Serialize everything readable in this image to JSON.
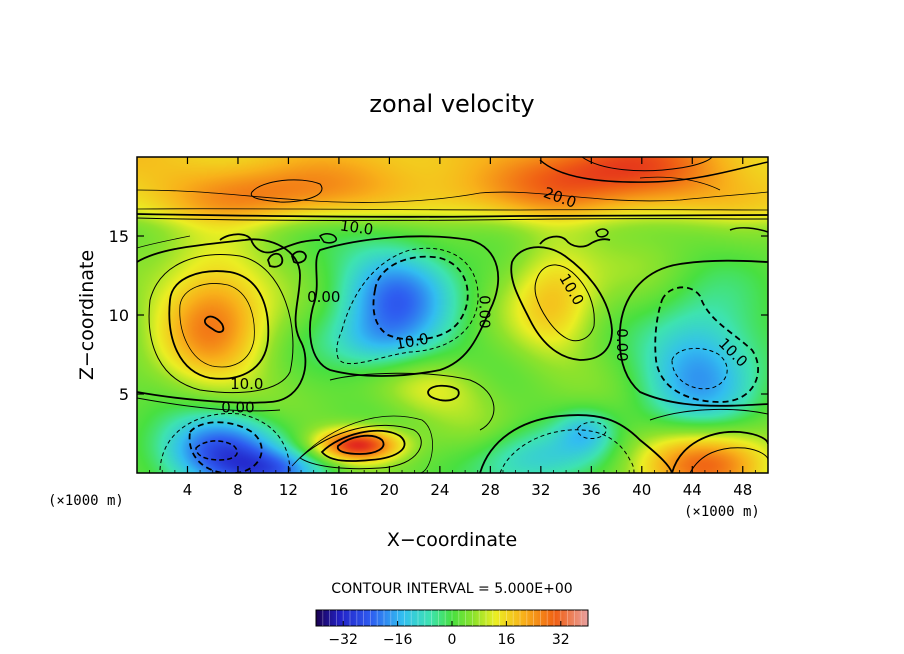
{
  "chart_data": {
    "type": "heatmap",
    "title": "zonal velocity",
    "xlabel": "X−coordinate",
    "ylabel": "Z−coordinate",
    "x_units_left": "(×1000 m)",
    "x_units_right": "(×1000 m)",
    "xlim": [
      0,
      50
    ],
    "ylim": [
      0,
      20
    ],
    "x_ticks": [
      4,
      8,
      12,
      16,
      20,
      24,
      28,
      32,
      36,
      40,
      44,
      48
    ],
    "y_ticks": [
      5,
      10,
      15
    ],
    "contour_interval_text": "CONTOUR INTERVAL = 5.000E+00",
    "colorbar": {
      "range": [
        -40,
        40
      ],
      "ticks": [
        -32,
        -16,
        0,
        16,
        32
      ]
    },
    "contour_labels": [
      {
        "text": "20.0",
        "x": 33.5,
        "y": 17.4,
        "angle": 20
      },
      {
        "text": "10.0",
        "x": 17.4,
        "y": 15.5,
        "angle": 8
      },
      {
        "text": "0.00",
        "x": 14.8,
        "y": 11.1,
        "angle": 0
      },
      {
        "text": "10.0",
        "x": 21.8,
        "y": 8.3,
        "angle": -10
      },
      {
        "text": "0.00",
        "x": 27.5,
        "y": 10.2,
        "angle": 90
      },
      {
        "text": "10.0",
        "x": 34.4,
        "y": 11.6,
        "angle": 60
      },
      {
        "text": "0.00",
        "x": 38.4,
        "y": 8.1,
        "angle": 90
      },
      {
        "text": "10.0",
        "x": 47.2,
        "y": 7.6,
        "angle": 45
      },
      {
        "text": "10.0",
        "x": 8.7,
        "y": 5.6,
        "angle": 0
      },
      {
        "text": "0.00",
        "x": 8.0,
        "y": 4.1,
        "angle": 0
      }
    ],
    "field_features": [
      {
        "x": 38,
        "y": 19.2,
        "amp": 16,
        "sx": 5.5,
        "sy": 1.6
      },
      {
        "x": 10,
        "y": 17.8,
        "amp": 9,
        "sx": 4.5,
        "sy": 1.3
      },
      {
        "x": 25,
        "y": 18.2,
        "amp": 4,
        "sx": 9,
        "sy": 1.2
      },
      {
        "x": 6,
        "y": 9.8,
        "amp": 23,
        "sx": 3.2,
        "sy": 3.2
      },
      {
        "x": 33,
        "y": 11.2,
        "amp": 15,
        "sx": 2.5,
        "sy": 2.8
      },
      {
        "x": 20.5,
        "y": 11.2,
        "amp": -24,
        "sx": 3.2,
        "sy": 2.3
      },
      {
        "x": 19,
        "y": 8.3,
        "amp": -10,
        "sx": 3,
        "sy": 1.3
      },
      {
        "x": 44.5,
        "y": 6.8,
        "amp": -21,
        "sx": 3.3,
        "sy": 3
      },
      {
        "x": 6.5,
        "y": 1.5,
        "amp": -30,
        "sx": 3.3,
        "sy": 1.6
      },
      {
        "x": 11,
        "y": 0.2,
        "amp": -18,
        "sx": 3,
        "sy": 0.9
      },
      {
        "x": 31,
        "y": 1.1,
        "amp": -14,
        "sx": 3.8,
        "sy": 1.4
      },
      {
        "x": 35.5,
        "y": 2.7,
        "amp": -12,
        "sx": 1.6,
        "sy": 1
      },
      {
        "x": 17.5,
        "y": 1.8,
        "amp": 34,
        "sx": 2.4,
        "sy": 0.75
      },
      {
        "x": 45,
        "y": 0.6,
        "amp": 26,
        "sx": 4,
        "sy": 1.6
      },
      {
        "x": 23.5,
        "y": 5.3,
        "amp": 9,
        "sx": 3,
        "sy": 1.3
      },
      {
        "x": 27,
        "y": 2.5,
        "amp": 4,
        "sx": 3,
        "sy": 1.5
      },
      {
        "x": 41,
        "y": 11.5,
        "amp": 3,
        "sx": 3,
        "sy": 3
      }
    ]
  }
}
